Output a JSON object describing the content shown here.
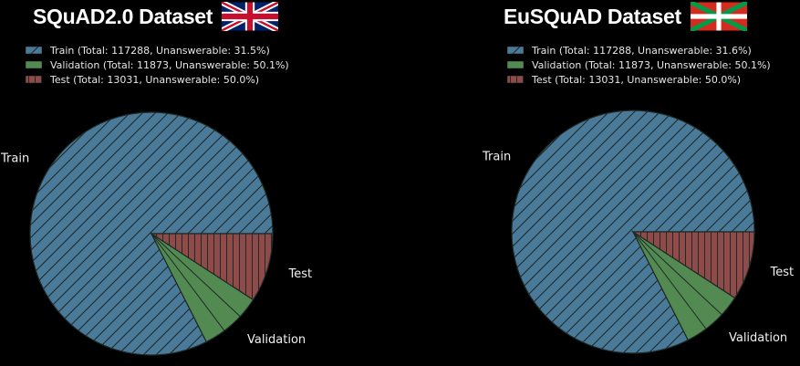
{
  "colors": {
    "train": "#4a7a99",
    "validation": "#528a52",
    "test": "#8f4a4a",
    "edge": "#1f2a26",
    "background": "#000000"
  },
  "chart_data": [
    {
      "type": "pie",
      "title": "SQuAD2.0 Dataset",
      "flag_icon": "uk-flag-icon",
      "legend": [
        "Train (Total: 117288, Unanswerable: 31.5%)",
        "Validation (Total: 11873, Unanswerable: 50.1%)",
        "Test (Total: 13031, Unanswerable: 50.0%)"
      ],
      "slices": [
        {
          "label": "Train",
          "value": 117288,
          "unanswerable_pct": 31.5
        },
        {
          "label": "Validation",
          "value": 11873,
          "unanswerable_pct": 50.1
        },
        {
          "label": "Test",
          "value": 13031,
          "unanswerable_pct": 50.0
        }
      ]
    },
    {
      "type": "pie",
      "title": "EuSQuAD Dataset",
      "flag_icon": "basque-flag-icon",
      "legend": [
        "Train (Total: 117288, Unanswerable: 31.6%)",
        "Validation (Total: 11873, Unanswerable: 50.1%)",
        "Test (Total: 13031, Unanswerable: 50.0%)"
      ],
      "slices": [
        {
          "label": "Train",
          "value": 117288,
          "unanswerable_pct": 31.6
        },
        {
          "label": "Validation",
          "value": 11873,
          "unanswerable_pct": 50.1
        },
        {
          "label": "Test",
          "value": 13031,
          "unanswerable_pct": 50.0
        }
      ]
    }
  ]
}
